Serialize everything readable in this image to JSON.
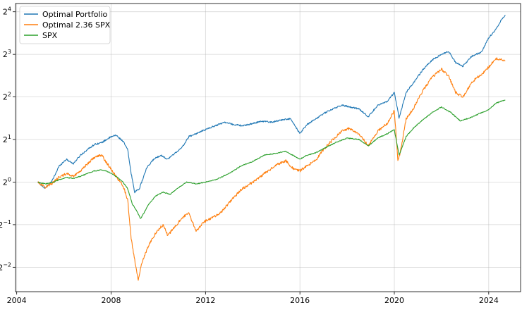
{
  "chart_data": {
    "type": "line",
    "yscale": "log2",
    "grid": true,
    "legend_position": "top-left",
    "xlim": [
      2003.95,
      2025.35
    ],
    "ylim": [
      0.168,
      18.3
    ],
    "x_ticks": [
      {
        "value": 2004,
        "label": "2004"
      },
      {
        "value": 2008,
        "label": "2008"
      },
      {
        "value": 2012,
        "label": "2012"
      },
      {
        "value": 2016,
        "label": "2016"
      },
      {
        "value": 2020,
        "label": "2020"
      },
      {
        "value": 2024,
        "label": "2024"
      }
    ],
    "y_ticks": [
      {
        "value": 0.25,
        "base": "2",
        "exp": "−2"
      },
      {
        "value": 0.5,
        "base": "2",
        "exp": "−1"
      },
      {
        "value": 1,
        "base": "2",
        "exp": "0"
      },
      {
        "value": 2,
        "base": "2",
        "exp": "1"
      },
      {
        "value": 4,
        "base": "2",
        "exp": "2"
      },
      {
        "value": 8,
        "base": "2",
        "exp": "3"
      },
      {
        "value": 16,
        "base": "2",
        "exp": "4"
      }
    ],
    "series": [
      {
        "name": "Optimal Portfolio",
        "color": "#1f77b4",
        "x": [
          2004.9,
          2005.2,
          2005.5,
          2005.8,
          2006.1,
          2006.4,
          2006.7,
          2007.0,
          2007.3,
          2007.6,
          2007.9,
          2008.2,
          2008.5,
          2008.7,
          2008.85,
          2009.0,
          2009.2,
          2009.5,
          2009.8,
          2010.1,
          2010.4,
          2010.7,
          2011.0,
          2011.3,
          2011.6,
          2012.0,
          2012.4,
          2012.8,
          2013.2,
          2013.6,
          2014.0,
          2014.4,
          2014.8,
          2015.2,
          2015.6,
          2016.0,
          2016.3,
          2016.6,
          2017.0,
          2017.4,
          2017.8,
          2018.1,
          2018.5,
          2018.9,
          2019.3,
          2019.7,
          2020.0,
          2020.2,
          2020.5,
          2020.8,
          2021.2,
          2021.6,
          2022.0,
          2022.3,
          2022.6,
          2022.9,
          2023.3,
          2023.7,
          2024.0,
          2024.3,
          2024.55,
          2024.7
        ],
        "y": [
          1.0,
          0.9,
          1.02,
          1.3,
          1.45,
          1.35,
          1.55,
          1.7,
          1.85,
          1.9,
          2.05,
          2.15,
          1.95,
          1.7,
          1.15,
          0.85,
          0.9,
          1.25,
          1.45,
          1.55,
          1.45,
          1.6,
          1.75,
          2.1,
          2.2,
          2.35,
          2.5,
          2.65,
          2.55,
          2.5,
          2.6,
          2.7,
          2.65,
          2.75,
          2.8,
          2.2,
          2.55,
          2.75,
          3.05,
          3.3,
          3.5,
          3.4,
          3.3,
          2.9,
          3.5,
          3.7,
          4.3,
          2.85,
          4.3,
          5.0,
          6.2,
          7.3,
          8.0,
          8.4,
          7.0,
          6.6,
          7.8,
          8.3,
          10.5,
          12.0,
          14.2,
          15.2
        ]
      },
      {
        "name": "Optimal 2.36 SPX",
        "color": "#ff7f0e",
        "x": [
          2004.9,
          2005.2,
          2005.5,
          2005.8,
          2006.1,
          2006.4,
          2006.7,
          2007.0,
          2007.3,
          2007.6,
          2007.9,
          2008.2,
          2008.5,
          2008.7,
          2008.85,
          2009.0,
          2009.15,
          2009.3,
          2009.6,
          2009.9,
          2010.2,
          2010.4,
          2010.7,
          2011.0,
          2011.3,
          2011.6,
          2011.9,
          2012.3,
          2012.7,
          2013.1,
          2013.5,
          2014.0,
          2014.5,
          2015.0,
          2015.4,
          2015.7,
          2016.0,
          2016.3,
          2016.7,
          2017.0,
          2017.4,
          2017.8,
          2018.1,
          2018.5,
          2018.9,
          2019.3,
          2019.7,
          2020.0,
          2020.15,
          2020.25,
          2020.5,
          2020.8,
          2021.2,
          2021.6,
          2022.0,
          2022.3,
          2022.6,
          2022.9,
          2023.3,
          2023.7,
          2024.0,
          2024.3,
          2024.55,
          2024.7
        ],
        "y": [
          1.0,
          0.92,
          0.98,
          1.08,
          1.15,
          1.1,
          1.2,
          1.35,
          1.5,
          1.55,
          1.3,
          1.1,
          0.95,
          0.75,
          0.4,
          0.28,
          0.2,
          0.27,
          0.36,
          0.44,
          0.5,
          0.42,
          0.48,
          0.56,
          0.6,
          0.45,
          0.52,
          0.56,
          0.62,
          0.75,
          0.88,
          1.0,
          1.15,
          1.32,
          1.42,
          1.25,
          1.2,
          1.3,
          1.45,
          1.7,
          2.0,
          2.3,
          2.4,
          2.2,
          1.8,
          2.3,
          2.6,
          3.2,
          1.45,
          1.6,
          2.8,
          3.3,
          4.4,
          5.5,
          6.3,
          5.6,
          4.3,
          4.0,
          5.1,
          5.8,
          6.5,
          7.5,
          7.3,
          7.2
        ]
      },
      {
        "name": "SPX",
        "color": "#2ca02c",
        "x": [
          2004.9,
          2005.2,
          2005.5,
          2005.8,
          2006.1,
          2006.4,
          2006.7,
          2007.0,
          2007.3,
          2007.6,
          2007.9,
          2008.2,
          2008.5,
          2008.7,
          2008.9,
          2009.1,
          2009.25,
          2009.6,
          2009.9,
          2010.2,
          2010.5,
          2010.8,
          2011.2,
          2011.6,
          2012.0,
          2012.5,
          2013.0,
          2013.5,
          2014.0,
          2014.5,
          2015.0,
          2015.4,
          2015.7,
          2016.0,
          2016.3,
          2016.7,
          2017.0,
          2017.5,
          2018.0,
          2018.5,
          2018.9,
          2019.3,
          2019.7,
          2020.0,
          2020.2,
          2020.5,
          2020.8,
          2021.2,
          2021.6,
          2022.0,
          2022.4,
          2022.8,
          2023.2,
          2023.6,
          2024.0,
          2024.3,
          2024.55,
          2024.7
        ],
        "y": [
          1.0,
          0.97,
          0.99,
          1.04,
          1.08,
          1.06,
          1.1,
          1.15,
          1.2,
          1.22,
          1.18,
          1.1,
          1.0,
          0.9,
          0.7,
          0.62,
          0.55,
          0.7,
          0.8,
          0.85,
          0.82,
          0.9,
          1.0,
          0.97,
          1.0,
          1.05,
          1.15,
          1.3,
          1.4,
          1.55,
          1.6,
          1.65,
          1.55,
          1.45,
          1.55,
          1.62,
          1.72,
          1.9,
          2.05,
          2.0,
          1.8,
          2.05,
          2.2,
          2.35,
          1.55,
          2.1,
          2.4,
          2.75,
          3.1,
          3.4,
          3.1,
          2.7,
          2.85,
          3.05,
          3.25,
          3.6,
          3.75,
          3.8
        ]
      }
    ]
  }
}
